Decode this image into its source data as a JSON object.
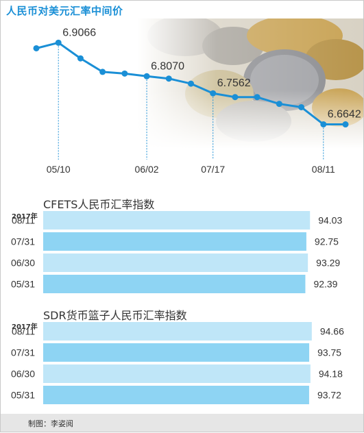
{
  "chart_data": [
    {
      "type": "line",
      "title": "人民币对美元汇率中间价",
      "x_ticks": [
        "05/10",
        "06/02",
        "07/17",
        "08/11"
      ],
      "values": [
        6.89,
        6.9066,
        6.86,
        6.82,
        6.815,
        6.807,
        6.8,
        6.785,
        6.7562,
        6.745,
        6.745,
        6.725,
        6.715,
        6.6642,
        6.664
      ],
      "annotations": [
        {
          "index": 1,
          "label": "6.9066"
        },
        {
          "index": 5,
          "label": "6.8070"
        },
        {
          "index": 8,
          "label": "6.7562"
        },
        {
          "index": 13,
          "label": "6.6642"
        }
      ],
      "tick_indices": [
        1,
        5,
        8,
        13
      ],
      "ylim": [
        6.6,
        6.95
      ],
      "color": "#1a8fd6"
    },
    {
      "type": "bar",
      "title": "CFETS人民币汇率指数",
      "year_label": "2017年",
      "categories": [
        "08/11",
        "07/31",
        "06/30",
        "05/31"
      ],
      "values": [
        94.03,
        92.75,
        93.29,
        92.39
      ],
      "value_labels": [
        "94.03",
        "92.75",
        "93.29",
        "92.39"
      ],
      "xlim": [
        0,
        100
      ],
      "colors": [
        "#bfe6f8",
        "#8ed4f3",
        "#bfe6f8",
        "#8ed4f3"
      ]
    },
    {
      "type": "bar",
      "title": "SDR货币篮子人民币汇率指数",
      "year_label": "2017年",
      "categories": [
        "08/11",
        "07/31",
        "06/30",
        "05/31"
      ],
      "values": [
        94.66,
        93.75,
        94.18,
        93.72
      ],
      "value_labels": [
        "94.66",
        "93.75",
        "94.18",
        "93.72"
      ],
      "xlim": [
        0,
        100
      ],
      "colors": [
        "#bfe6f8",
        "#8ed4f3",
        "#bfe6f8",
        "#8ed4f3"
      ]
    }
  ],
  "footer": {
    "credit": "制图：李姿阅"
  }
}
